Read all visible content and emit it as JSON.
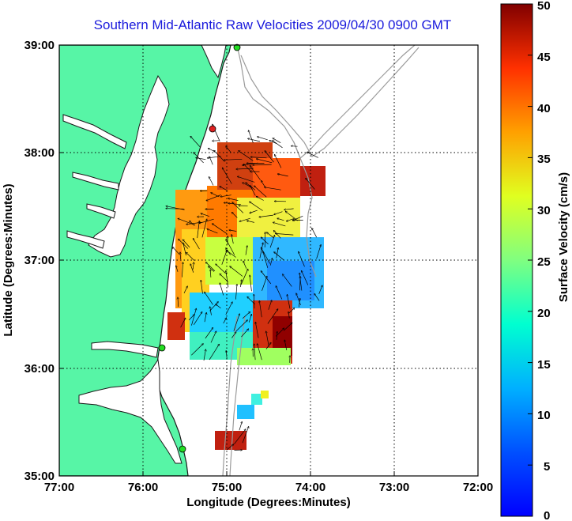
{
  "title": "Southern Mid-Atlantic Raw Velocities 2009/04/30 0900 GMT",
  "map": {
    "xlabel": "Longitude (Degrees:Minutes)",
    "ylabel": "Latitude (Degrees:Minutes)",
    "x_ticks": [
      "77:00",
      "76:00",
      "75:00",
      "74:00",
      "73:00",
      "72:00"
    ],
    "y_ticks": [
      "39:00",
      "38:00",
      "37:00",
      "36:00",
      "35:00"
    ],
    "lon_range": [
      -77,
      -72
    ],
    "lat_range": [
      35,
      39
    ],
    "grid": true,
    "colors": {
      "land": "#57f5a6",
      "coastline": "#1a1a1a",
      "bathymetry": "#9a9a9a",
      "station": "#22dd22",
      "station_red": "#dd2020"
    }
  },
  "colorbar": {
    "label": "Surface Velocity (cm/s)",
    "ticks": [
      "50",
      "45",
      "40",
      "35",
      "30",
      "25",
      "20",
      "15",
      "10",
      "5",
      "0"
    ],
    "range": [
      0,
      50
    ],
    "colormap": "jet"
  }
}
